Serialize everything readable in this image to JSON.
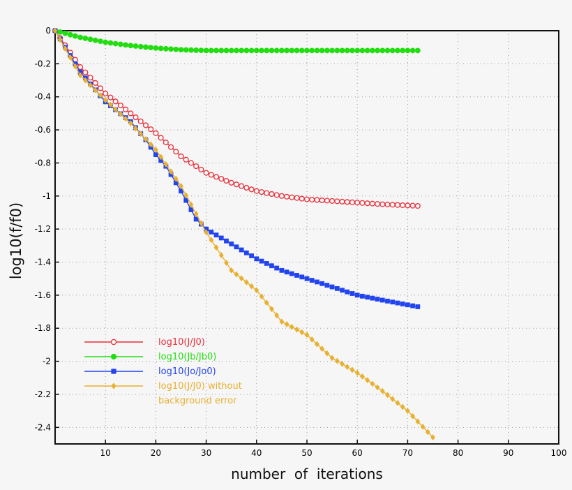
{
  "chart_data": {
    "type": "line",
    "xlabel": "number  of  iterations",
    "ylabel": "log10(f/f0)",
    "xlim": [
      0,
      100
    ],
    "ylim": [
      -2.5,
      0
    ],
    "x_ticks": [
      10,
      20,
      30,
      40,
      50,
      60,
      70,
      80,
      90,
      100
    ],
    "y_ticks": [
      0,
      -0.2,
      -0.4,
      -0.6,
      -0.8,
      -1,
      -1.2,
      -1.4,
      -1.6,
      -1.8,
      -2,
      -2.2,
      -2.4
    ],
    "grid": true,
    "legend_position": "bottom-left",
    "series": [
      {
        "name": "log10(J/J0)",
        "color": "#e8303a",
        "marker": "open-circle",
        "x": [
          0,
          5,
          10,
          15,
          20,
          25,
          30,
          35,
          40,
          45,
          50,
          55,
          60,
          65,
          72
        ],
        "y": [
          0,
          -0.22,
          -0.38,
          -0.5,
          -0.62,
          -0.76,
          -0.86,
          -0.92,
          -0.97,
          -1.0,
          -1.02,
          -1.03,
          -1.04,
          -1.05,
          -1.06
        ]
      },
      {
        "name": "log10(Jb/Jb0)",
        "color": "#22dd11",
        "marker": "filled-circle",
        "x": [
          0,
          5,
          10,
          15,
          20,
          25,
          30,
          40,
          50,
          60,
          72
        ],
        "y": [
          0,
          -0.04,
          -0.07,
          -0.09,
          -0.105,
          -0.115,
          -0.12,
          -0.12,
          -0.12,
          -0.12,
          -0.12
        ]
      },
      {
        "name": "log10(Jo/Jo0)",
        "color": "#2244ee",
        "marker": "filled-square",
        "x": [
          0,
          5,
          10,
          15,
          18,
          20,
          22,
          25,
          28,
          30,
          35,
          40,
          45,
          50,
          55,
          60,
          65,
          72
        ],
        "y": [
          0,
          -0.25,
          -0.43,
          -0.55,
          -0.66,
          -0.75,
          -0.82,
          -0.97,
          -1.14,
          -1.2,
          -1.29,
          -1.38,
          -1.45,
          -1.5,
          -1.55,
          -1.6,
          -1.63,
          -1.67
        ]
      },
      {
        "name": "log10(J/J0)  without\nbackground error",
        "color": "#e8b030",
        "marker": "filled-diamond",
        "x": [
          0,
          5,
          10,
          15,
          20,
          25,
          30,
          35,
          40,
          45,
          50,
          55,
          60,
          65,
          70,
          75
        ],
        "y": [
          0,
          -0.27,
          -0.42,
          -0.56,
          -0.72,
          -0.94,
          -1.22,
          -1.45,
          -1.57,
          -1.76,
          -1.84,
          -1.98,
          -2.07,
          -2.18,
          -2.3,
          -2.46
        ]
      }
    ]
  }
}
